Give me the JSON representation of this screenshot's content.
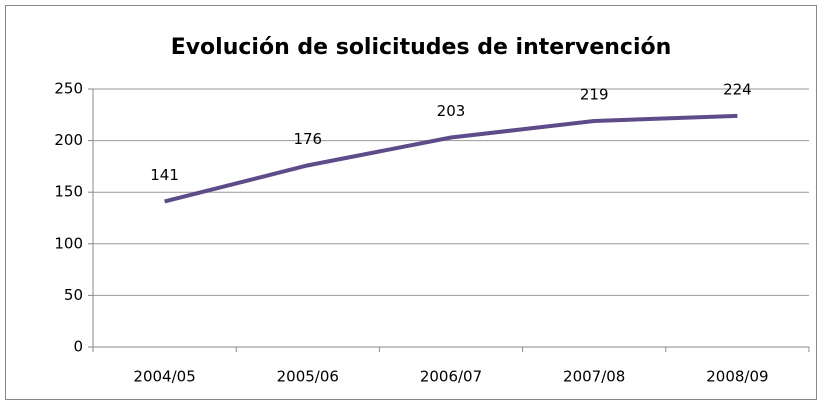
{
  "chart_data": {
    "type": "line",
    "title": "Evolución de solicitudes de intervención",
    "categories": [
      "2004/05",
      "2005/06",
      "2006/07",
      "2007/08",
      "2008/09"
    ],
    "values": [
      141,
      176,
      203,
      219,
      224
    ],
    "color": "#5e4b8a",
    "ylim": [
      0,
      250
    ],
    "yticks": [
      0,
      50,
      100,
      150,
      200,
      250
    ],
    "grid": true
  }
}
